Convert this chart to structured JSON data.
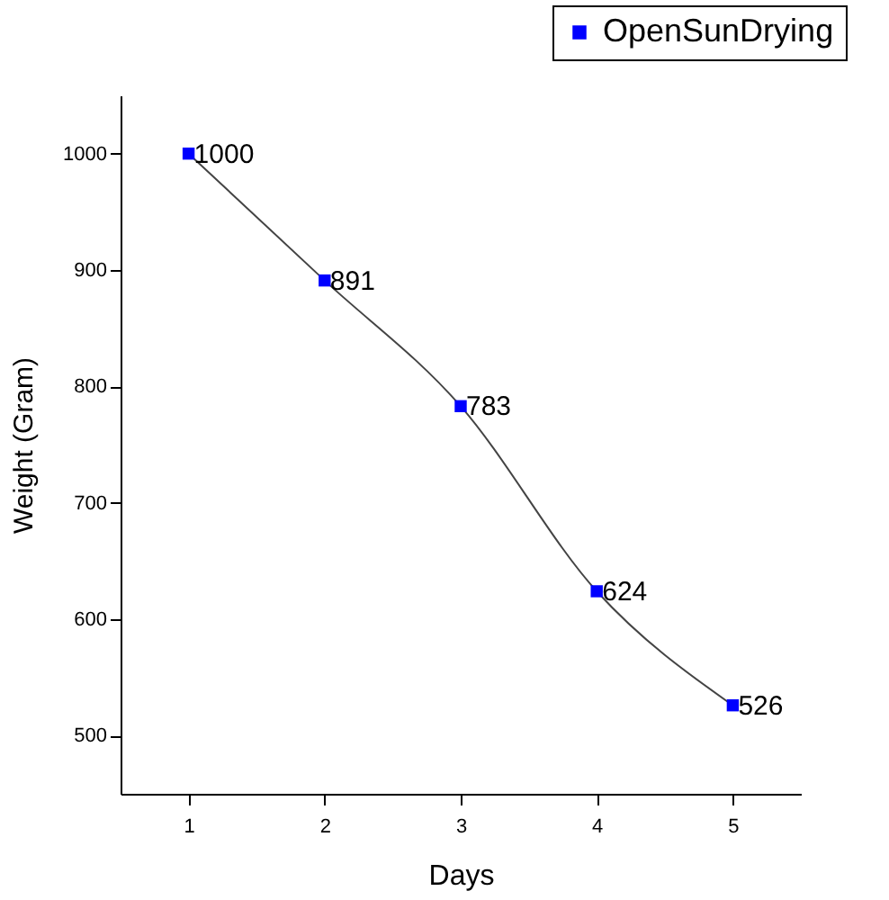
{
  "chart_data": {
    "type": "line",
    "xlabel": "Days",
    "ylabel": "Weight (Gram)",
    "x": [
      1,
      2,
      3,
      4,
      5
    ],
    "series": [
      {
        "name": "OpenSunDrying",
        "color": "#0000ff",
        "values": [
          1000,
          891,
          783,
          624,
          526
        ]
      }
    ],
    "xlim": [
      0.5,
      5.5
    ],
    "xticks": [
      1,
      2,
      3,
      4,
      5
    ],
    "ylim": [
      450,
      1050
    ],
    "yticks": [
      500,
      600,
      700,
      800,
      900,
      1000
    ],
    "data_labels": true,
    "legend": "top right",
    "marker": "square",
    "grid": false
  }
}
